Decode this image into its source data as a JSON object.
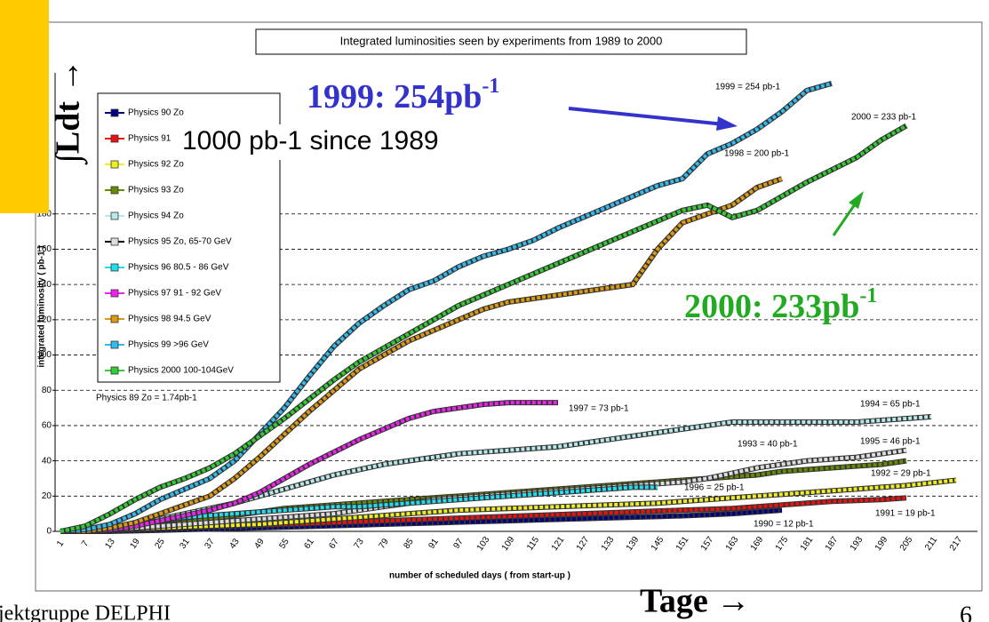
{
  "slide": {
    "left_label": "∫Ldt →",
    "bottom_label": "Tage →",
    "footer": "jektgruppe DELPHI",
    "page": "6",
    "callouts": [
      {
        "text": "1999: 254pb",
        "sup": "-1"
      },
      {
        "text": "1000 pb-1 since 1989"
      },
      {
        "text": "2000: 233pb",
        "sup": "-1"
      }
    ]
  },
  "chart_data": {
    "type": "line",
    "title": "Integrated luminosities seen by experiments from 1989 to 2000",
    "x_label": "number of scheduled days ( from start-up )",
    "y_label": "integrated luminosity ( pb-1 )",
    "categories": [
      "1",
      "7",
      "13",
      "19",
      "25",
      "31",
      "37",
      "43",
      "49",
      "55",
      "61",
      "67",
      "73",
      "79",
      "85",
      "91",
      "97",
      "103",
      "109",
      "115",
      "121",
      "127",
      "133",
      "139",
      "145",
      "151",
      "157",
      "163",
      "169",
      "175",
      "181",
      "187",
      "193",
      "199",
      "205",
      "211",
      "217"
    ],
    "ylim": [
      0,
      260
    ],
    "yticks": [
      0,
      20,
      40,
      60,
      80,
      100,
      120,
      140,
      160,
      180
    ],
    "grid": true,
    "series": [
      {
        "name": "Physics 90  Zo",
        "color": "#000080",
        "values": [
          0,
          0,
          0,
          0.3,
          0.6,
          1,
          1.3,
          1.7,
          2,
          2.4,
          2.8,
          3.2,
          3.6,
          4,
          4.4,
          4.8,
          5.2,
          5.6,
          6,
          6.4,
          6.8,
          7.2,
          7.6,
          8,
          8.4,
          8.8,
          9.4,
          10,
          11,
          12,
          null,
          null,
          null,
          null,
          null,
          null,
          null
        ]
      },
      {
        "name": "Physics 91  Zo",
        "color": "#ee1111",
        "values": [
          0,
          0.3,
          0.6,
          1,
          1.5,
          2,
          2.5,
          3,
          3.5,
          4,
          4.5,
          5,
          5.5,
          6,
          6.5,
          7,
          7.5,
          8,
          8.5,
          9,
          9.5,
          10,
          10.5,
          11,
          11.5,
          12,
          12.5,
          13,
          14,
          15,
          16,
          17,
          17.5,
          18,
          19,
          null,
          null
        ]
      },
      {
        "name": "Physics 92  Zo",
        "color": "#eeee22",
        "values": [
          0,
          0.5,
          1,
          1.5,
          2,
          2.5,
          3,
          3.5,
          4,
          5,
          6,
          7,
          8,
          9,
          10,
          11,
          12,
          12.5,
          13,
          13.5,
          14,
          14.5,
          15,
          15.5,
          16,
          17,
          18,
          19,
          20,
          21,
          22,
          23,
          24,
          25,
          26,
          27.5,
          29
        ]
      },
      {
        "name": "Physics 93  Zo",
        "color": "#668a00",
        "values": [
          0,
          0,
          1,
          2,
          3,
          5,
          7,
          9,
          11,
          13,
          14,
          15,
          16,
          17,
          18,
          19,
          20,
          21,
          22,
          23,
          24,
          25,
          26,
          27,
          28,
          29,
          30,
          31,
          32,
          34,
          35,
          36,
          37,
          38,
          40,
          null,
          null
        ]
      },
      {
        "name": "Physics 94  Zo",
        "color": "#b8e8e8",
        "values": [
          0,
          1,
          2,
          4,
          7,
          10,
          13,
          16,
          20,
          24,
          28,
          32,
          35,
          38,
          40,
          42,
          44,
          45,
          46,
          47,
          48,
          50,
          52,
          54,
          56,
          58,
          60,
          62,
          62,
          62,
          62,
          62,
          62,
          63,
          64,
          65,
          null
        ]
      },
      {
        "name": "Physics 95  Zo, 65-70 GeV",
        "color": "#dddddd",
        "values": [
          0,
          0,
          1,
          2,
          3,
          4,
          5,
          6,
          7,
          8,
          9,
          10,
          12,
          14,
          16,
          18,
          19,
          20,
          21,
          22,
          23,
          24,
          25,
          26,
          27,
          28,
          30,
          33,
          36,
          38,
          40,
          41,
          42,
          44,
          46,
          null,
          null
        ]
      },
      {
        "name": "Physics 96  80.5 - 86 GeV",
        "color": "#22ddee",
        "values": [
          0,
          1,
          2,
          4,
          6,
          8,
          9,
          10,
          11,
          12,
          13,
          14,
          14,
          15,
          16,
          17,
          18,
          19,
          20,
          21,
          22,
          23,
          24,
          25,
          25,
          null,
          null,
          null,
          null,
          null,
          null,
          null,
          null,
          null,
          null,
          null,
          null
        ]
      },
      {
        "name": "Physics 97  91 - 92 GeV",
        "color": "#ee22ee",
        "values": [
          0,
          0,
          1,
          3,
          6,
          9,
          12,
          16,
          22,
          30,
          38,
          45,
          52,
          58,
          64,
          68,
          70,
          72,
          73,
          73,
          73,
          null,
          null,
          null,
          null,
          null,
          null,
          null,
          null,
          null,
          null,
          null,
          null,
          null,
          null,
          null,
          null
        ]
      },
      {
        "name": "Physics 98  94.5 GeV",
        "color": "#dd9911",
        "values": [
          0,
          0,
          2,
          5,
          10,
          15,
          20,
          30,
          42,
          55,
          68,
          80,
          92,
          100,
          108,
          114,
          120,
          126,
          130,
          132,
          134,
          136,
          138,
          140,
          160,
          175,
          180,
          185,
          195,
          200,
          null,
          null,
          null,
          null,
          null,
          null,
          null
        ]
      },
      {
        "name": "Physics 99  >96 GeV",
        "color": "#33bbee",
        "values": [
          0,
          1,
          4,
          10,
          18,
          24,
          30,
          40,
          55,
          70,
          88,
          105,
          118,
          128,
          137,
          142,
          150,
          156,
          160,
          165,
          172,
          178,
          184,
          190,
          196,
          200,
          214,
          220,
          228,
          238,
          250,
          254,
          null,
          null,
          null,
          null,
          null
        ]
      },
      {
        "name": "Physics 2000 100-104GeV",
        "color": "#33cc33",
        "values": [
          0,
          3,
          10,
          18,
          25,
          30,
          36,
          44,
          54,
          64,
          75,
          86,
          96,
          104,
          112,
          120,
          128,
          134,
          140,
          146,
          152,
          158,
          164,
          170,
          176,
          182,
          185,
          178,
          182,
          190,
          198,
          205,
          212,
          222,
          230,
          null,
          null
        ]
      }
    ],
    "annotations": [
      "1999 = 254 pb-1",
      "2000 = 233 pb-1",
      "1998 = 200 pb-1",
      "1997 = 73 pb-1",
      "1994 = 65 pb-1",
      "1993 = 40 pb-1",
      "1995 = 46 pb-1",
      "1992 = 29 pb-1",
      "1996 = 25 pb-1",
      "1991 = 19 pb-1",
      "1990 = 12 pb-1",
      "Physics 89 Zo = 1.74pb-1"
    ]
  }
}
